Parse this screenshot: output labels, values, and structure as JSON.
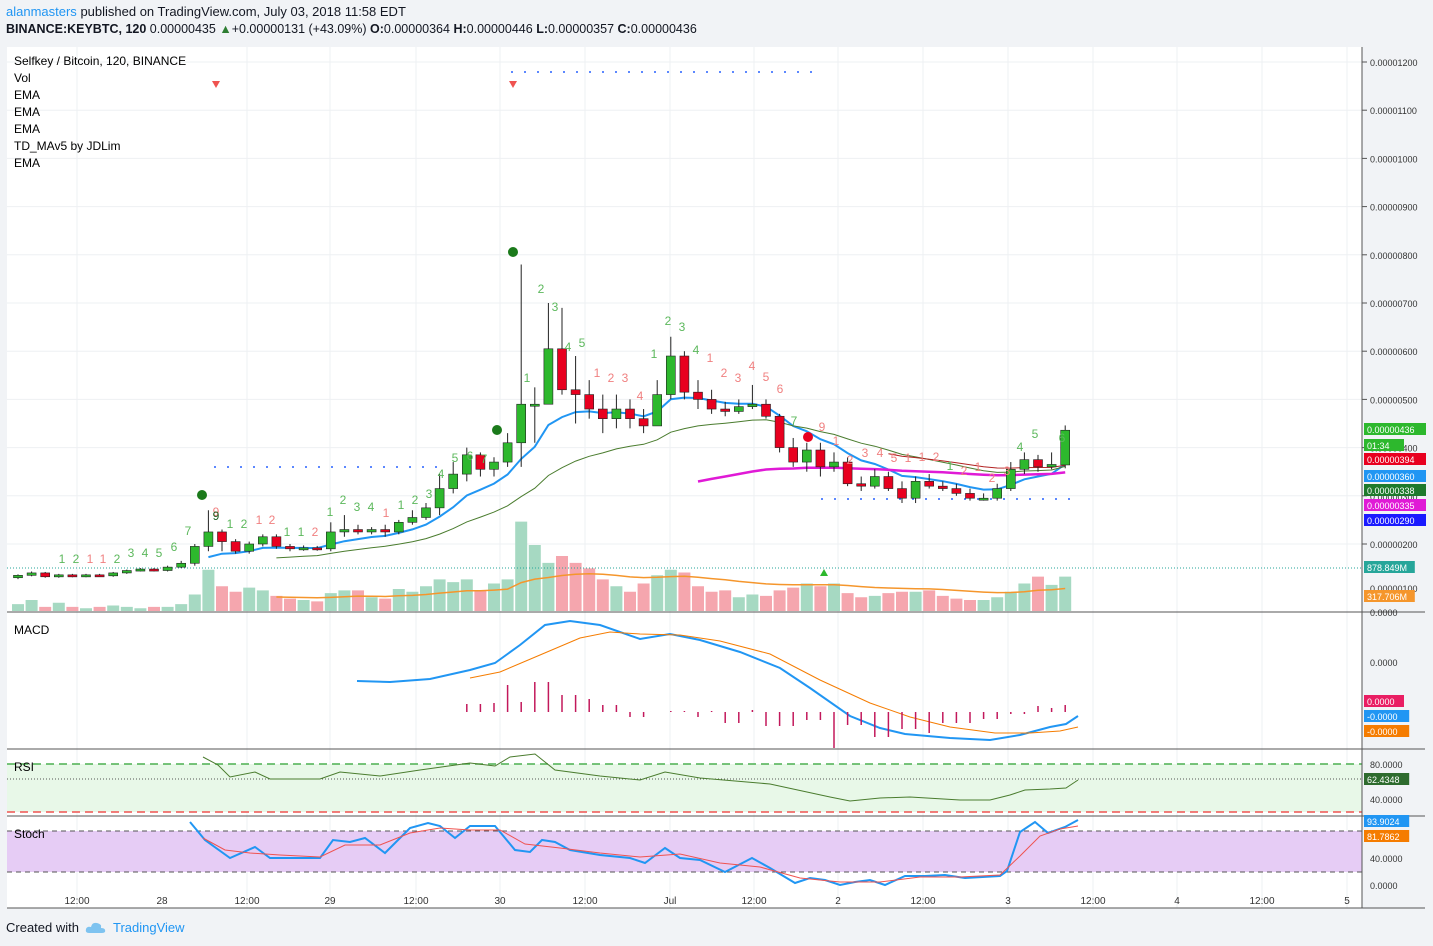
{
  "header": {
    "user": "alanmasters",
    "published": "published on TradingView.com, July 03, 2018 11:58 EDT",
    "symbol": "BINANCE:KEYBTC, 120",
    "last": "0.00000435",
    "change": "+0.00000131 (+43.09%)",
    "o_label": "O:",
    "o": "0.00000364",
    "h_label": "H:",
    "h": "0.00000446",
    "l_label": "L:",
    "l": "0.00000357",
    "c_label": "C:",
    "c": "0.00000436"
  },
  "legend": {
    "title": "Selfkey / Bitcoin, 120, BINANCE",
    "items": [
      "Vol",
      "EMA",
      "EMA",
      "EMA",
      "TD_MAv5 by JDLim",
      "EMA"
    ]
  },
  "panes": {
    "macd": "MACD",
    "rsi": "RSI",
    "stoch": "Stoch"
  },
  "footer": {
    "created": "Created with",
    "brand": "TradingView"
  },
  "colors": {
    "up": "#26a69a",
    "down": "#ef5350",
    "candle_up": "#2db82d",
    "candle_down": "#e8001f",
    "ema_blue": "#2196f3",
    "ema_green": "#4a7c2e",
    "ema_red": "#b22222",
    "ema_magenta": "#e01ad6",
    "vol_ma": "#f5962c"
  },
  "chart_data": [
    {
      "type": "candlestick",
      "title": "Selfkey / Bitcoin, 120, BINANCE",
      "x_ticks": [
        "12:00",
        "28",
        "12:00",
        "29",
        "12:00",
        "30",
        "12:00",
        "Jul",
        "12:00",
        "2",
        "12:00",
        "3",
        "12:00",
        "4",
        "12:00",
        "5"
      ],
      "y_ticks": [
        "0.00001200",
        "0.00001100",
        "0.00001000",
        "0.00000900",
        "0.00000800",
        "0.00000700",
        "0.00000600",
        "0.00000500",
        "0.00000400",
        "0.00000300",
        "0.00000200"
      ],
      "ylim": [
        1.6e-06,
        1.24e-05
      ],
      "candles": [
        [
          1.3,
          1.35,
          1.37,
          1.27
        ],
        [
          1.35,
          1.4,
          1.43,
          1.33
        ],
        [
          1.4,
          1.32,
          1.42,
          1.3
        ],
        [
          1.32,
          1.36,
          1.38,
          1.3
        ],
        [
          1.36,
          1.33,
          1.38,
          1.31
        ],
        [
          1.33,
          1.36,
          1.38,
          1.31
        ],
        [
          1.36,
          1.34,
          1.38,
          1.32
        ],
        [
          1.34,
          1.4,
          1.42,
          1.32
        ],
        [
          1.4,
          1.45,
          1.47,
          1.38
        ],
        [
          1.45,
          1.48,
          1.5,
          1.43
        ],
        [
          1.48,
          1.45,
          1.5,
          1.43
        ],
        [
          1.45,
          1.52,
          1.55,
          1.43
        ],
        [
          1.52,
          1.6,
          1.65,
          1.5
        ],
        [
          1.6,
          1.95,
          2.0,
          1.55
        ],
        [
          1.95,
          2.25,
          2.7,
          1.85
        ],
        [
          2.25,
          2.05,
          2.3,
          1.85
        ],
        [
          2.05,
          1.85,
          2.1,
          1.8
        ],
        [
          1.85,
          2.0,
          2.05,
          1.8
        ],
        [
          2.0,
          2.15,
          2.2,
          1.95
        ],
        [
          2.15,
          1.95,
          2.2,
          1.9
        ],
        [
          1.95,
          1.9,
          2.0,
          1.85
        ],
        [
          1.9,
          1.92,
          1.97,
          1.86
        ],
        [
          1.92,
          1.9,
          1.96,
          1.86
        ],
        [
          1.9,
          2.25,
          2.45,
          1.85
        ],
        [
          2.25,
          2.3,
          2.6,
          2.15
        ],
        [
          2.3,
          2.25,
          2.4,
          2.2
        ],
        [
          2.25,
          2.3,
          2.35,
          2.2
        ],
        [
          2.3,
          2.25,
          2.4,
          2.15
        ],
        [
          2.25,
          2.45,
          2.5,
          2.2
        ],
        [
          2.45,
          2.55,
          2.7,
          2.4
        ],
        [
          2.55,
          2.75,
          2.85,
          2.5
        ],
        [
          2.75,
          3.15,
          3.45,
          2.6
        ],
        [
          3.15,
          3.45,
          3.7,
          3.05
        ],
        [
          3.45,
          3.85,
          4.0,
          3.3
        ],
        [
          3.85,
          3.55,
          3.9,
          3.4
        ],
        [
          3.55,
          3.7,
          3.8,
          3.4
        ],
        [
          3.7,
          4.1,
          4.3,
          3.6
        ],
        [
          4.1,
          4.9,
          7.8,
          3.6
        ],
        [
          4.9,
          4.9,
          5.25,
          4.1
        ],
        [
          4.9,
          6.05,
          7.0,
          4.9
        ],
        [
          6.05,
          5.2,
          6.9,
          5.1
        ],
        [
          5.2,
          5.1,
          5.9,
          4.5
        ],
        [
          5.1,
          4.8,
          5.4,
          4.6
        ],
        [
          4.8,
          4.6,
          5.1,
          4.3
        ],
        [
          4.6,
          4.8,
          5.1,
          4.4
        ],
        [
          4.8,
          4.6,
          5.0,
          4.4
        ],
        [
          4.6,
          4.45,
          4.8,
          4.3
        ],
        [
          4.45,
          5.1,
          5.4,
          4.5
        ],
        [
          5.1,
          5.9,
          6.3,
          5.0
        ],
        [
          5.9,
          5.15,
          6.0,
          5.0
        ],
        [
          5.15,
          5.0,
          5.4,
          4.8
        ],
        [
          5.0,
          4.8,
          5.2,
          4.7
        ],
        [
          4.8,
          4.75,
          4.95,
          4.65
        ],
        [
          4.75,
          4.85,
          5.0,
          4.7
        ],
        [
          4.85,
          4.9,
          5.3,
          4.8
        ],
        [
          4.9,
          4.65,
          5.0,
          4.6
        ],
        [
          4.65,
          4.0,
          4.7,
          3.9
        ],
        [
          4.0,
          3.7,
          4.2,
          3.6
        ],
        [
          3.7,
          3.95,
          4.1,
          3.5
        ],
        [
          3.95,
          3.6,
          4.1,
          3.4
        ],
        [
          3.6,
          3.7,
          3.9,
          3.5
        ],
        [
          3.7,
          3.25,
          3.8,
          3.2
        ],
        [
          3.25,
          3.2,
          3.4,
          3.1
        ],
        [
          3.2,
          3.4,
          3.55,
          3.15
        ],
        [
          3.4,
          3.15,
          3.5,
          3.1
        ],
        [
          3.15,
          2.95,
          3.3,
          2.85
        ],
        [
          2.95,
          3.3,
          3.4,
          2.85
        ],
        [
          3.3,
          3.2,
          3.45,
          3.15
        ],
        [
          3.2,
          3.15,
          3.3,
          3.1
        ],
        [
          3.15,
          3.05,
          3.25,
          3.0
        ],
        [
          3.05,
          2.95,
          3.15,
          2.9
        ],
        [
          2.95,
          2.95,
          3.05,
          2.9
        ],
        [
          2.95,
          3.15,
          3.25,
          2.9
        ],
        [
          3.15,
          3.55,
          3.7,
          3.1
        ],
        [
          3.55,
          3.75,
          3.9,
          3.45
        ],
        [
          3.75,
          3.6,
          3.85,
          3.5
        ],
        [
          3.6,
          3.65,
          3.9,
          3.55
        ],
        [
          3.64,
          4.36,
          4.46,
          3.57
        ]
      ],
      "volume": [
        5,
        8,
        3,
        6,
        3,
        2,
        3,
        4,
        3,
        2,
        3,
        3,
        5,
        12,
        30,
        18,
        14,
        17,
        15,
        11,
        9,
        8,
        7,
        13,
        15,
        15,
        10,
        9,
        16,
        14,
        18,
        23,
        21,
        23,
        15,
        20,
        23,
        65,
        48,
        35,
        40,
        35,
        31,
        23,
        18,
        14,
        20,
        26,
        30,
        28,
        18,
        14,
        15,
        10,
        12,
        11,
        15,
        17,
        20,
        18,
        20,
        13,
        10,
        11,
        13,
        14,
        14,
        15,
        11,
        9,
        8,
        8,
        10,
        14,
        20,
        25,
        19,
        25
      ],
      "volume_price_labels": [
        "878.849M",
        "317.706M"
      ],
      "price_labels": [
        "0.00000436",
        "01:34",
        "0.00000394",
        "0.00000360",
        "0.00000338",
        "0.00000335",
        "0.00000290"
      ],
      "td_labels": [
        "1",
        "2",
        "1",
        "1",
        "2",
        "3",
        "4",
        "5",
        "6",
        "7",
        "9",
        "1",
        "2",
        "1",
        "2",
        "1",
        "1",
        "2",
        "1",
        "2",
        "3",
        "4",
        "1",
        "1",
        "2",
        "3",
        "4",
        "5",
        "6",
        "7",
        "1",
        "2",
        "3",
        "4",
        "5",
        "1",
        "2",
        "3",
        "4",
        "1",
        "2",
        "3",
        "4",
        "1",
        "2",
        "3",
        "4",
        "5",
        "6",
        "7",
        "9",
        "1",
        "2",
        "3",
        "4",
        "5",
        "1",
        "1",
        "2",
        "1",
        "2",
        "1",
        "2",
        "3",
        "4",
        "5",
        "6"
      ],
      "vol_axis_label": "0.00000100"
    },
    {
      "type": "line",
      "title": "MACD",
      "y_ticks": [
        "0.0000",
        "0.0000"
      ],
      "value_labels": [
        "0.0000",
        "-0.0000",
        "-0.0000"
      ]
    },
    {
      "type": "line",
      "title": "RSI",
      "y_ticks": [
        "80.0000",
        "40.0000"
      ],
      "value_label": "62.4348",
      "bands": [
        70,
        30
      ],
      "ylim": [
        20,
        90
      ]
    },
    {
      "type": "line",
      "title": "Stoch",
      "y_ticks": [
        "40.0000",
        "0.0000"
      ],
      "value_labels": [
        "93.9024",
        "81.7862"
      ],
      "bands": [
        80,
        20
      ],
      "ylim": [
        -5,
        105
      ]
    }
  ]
}
